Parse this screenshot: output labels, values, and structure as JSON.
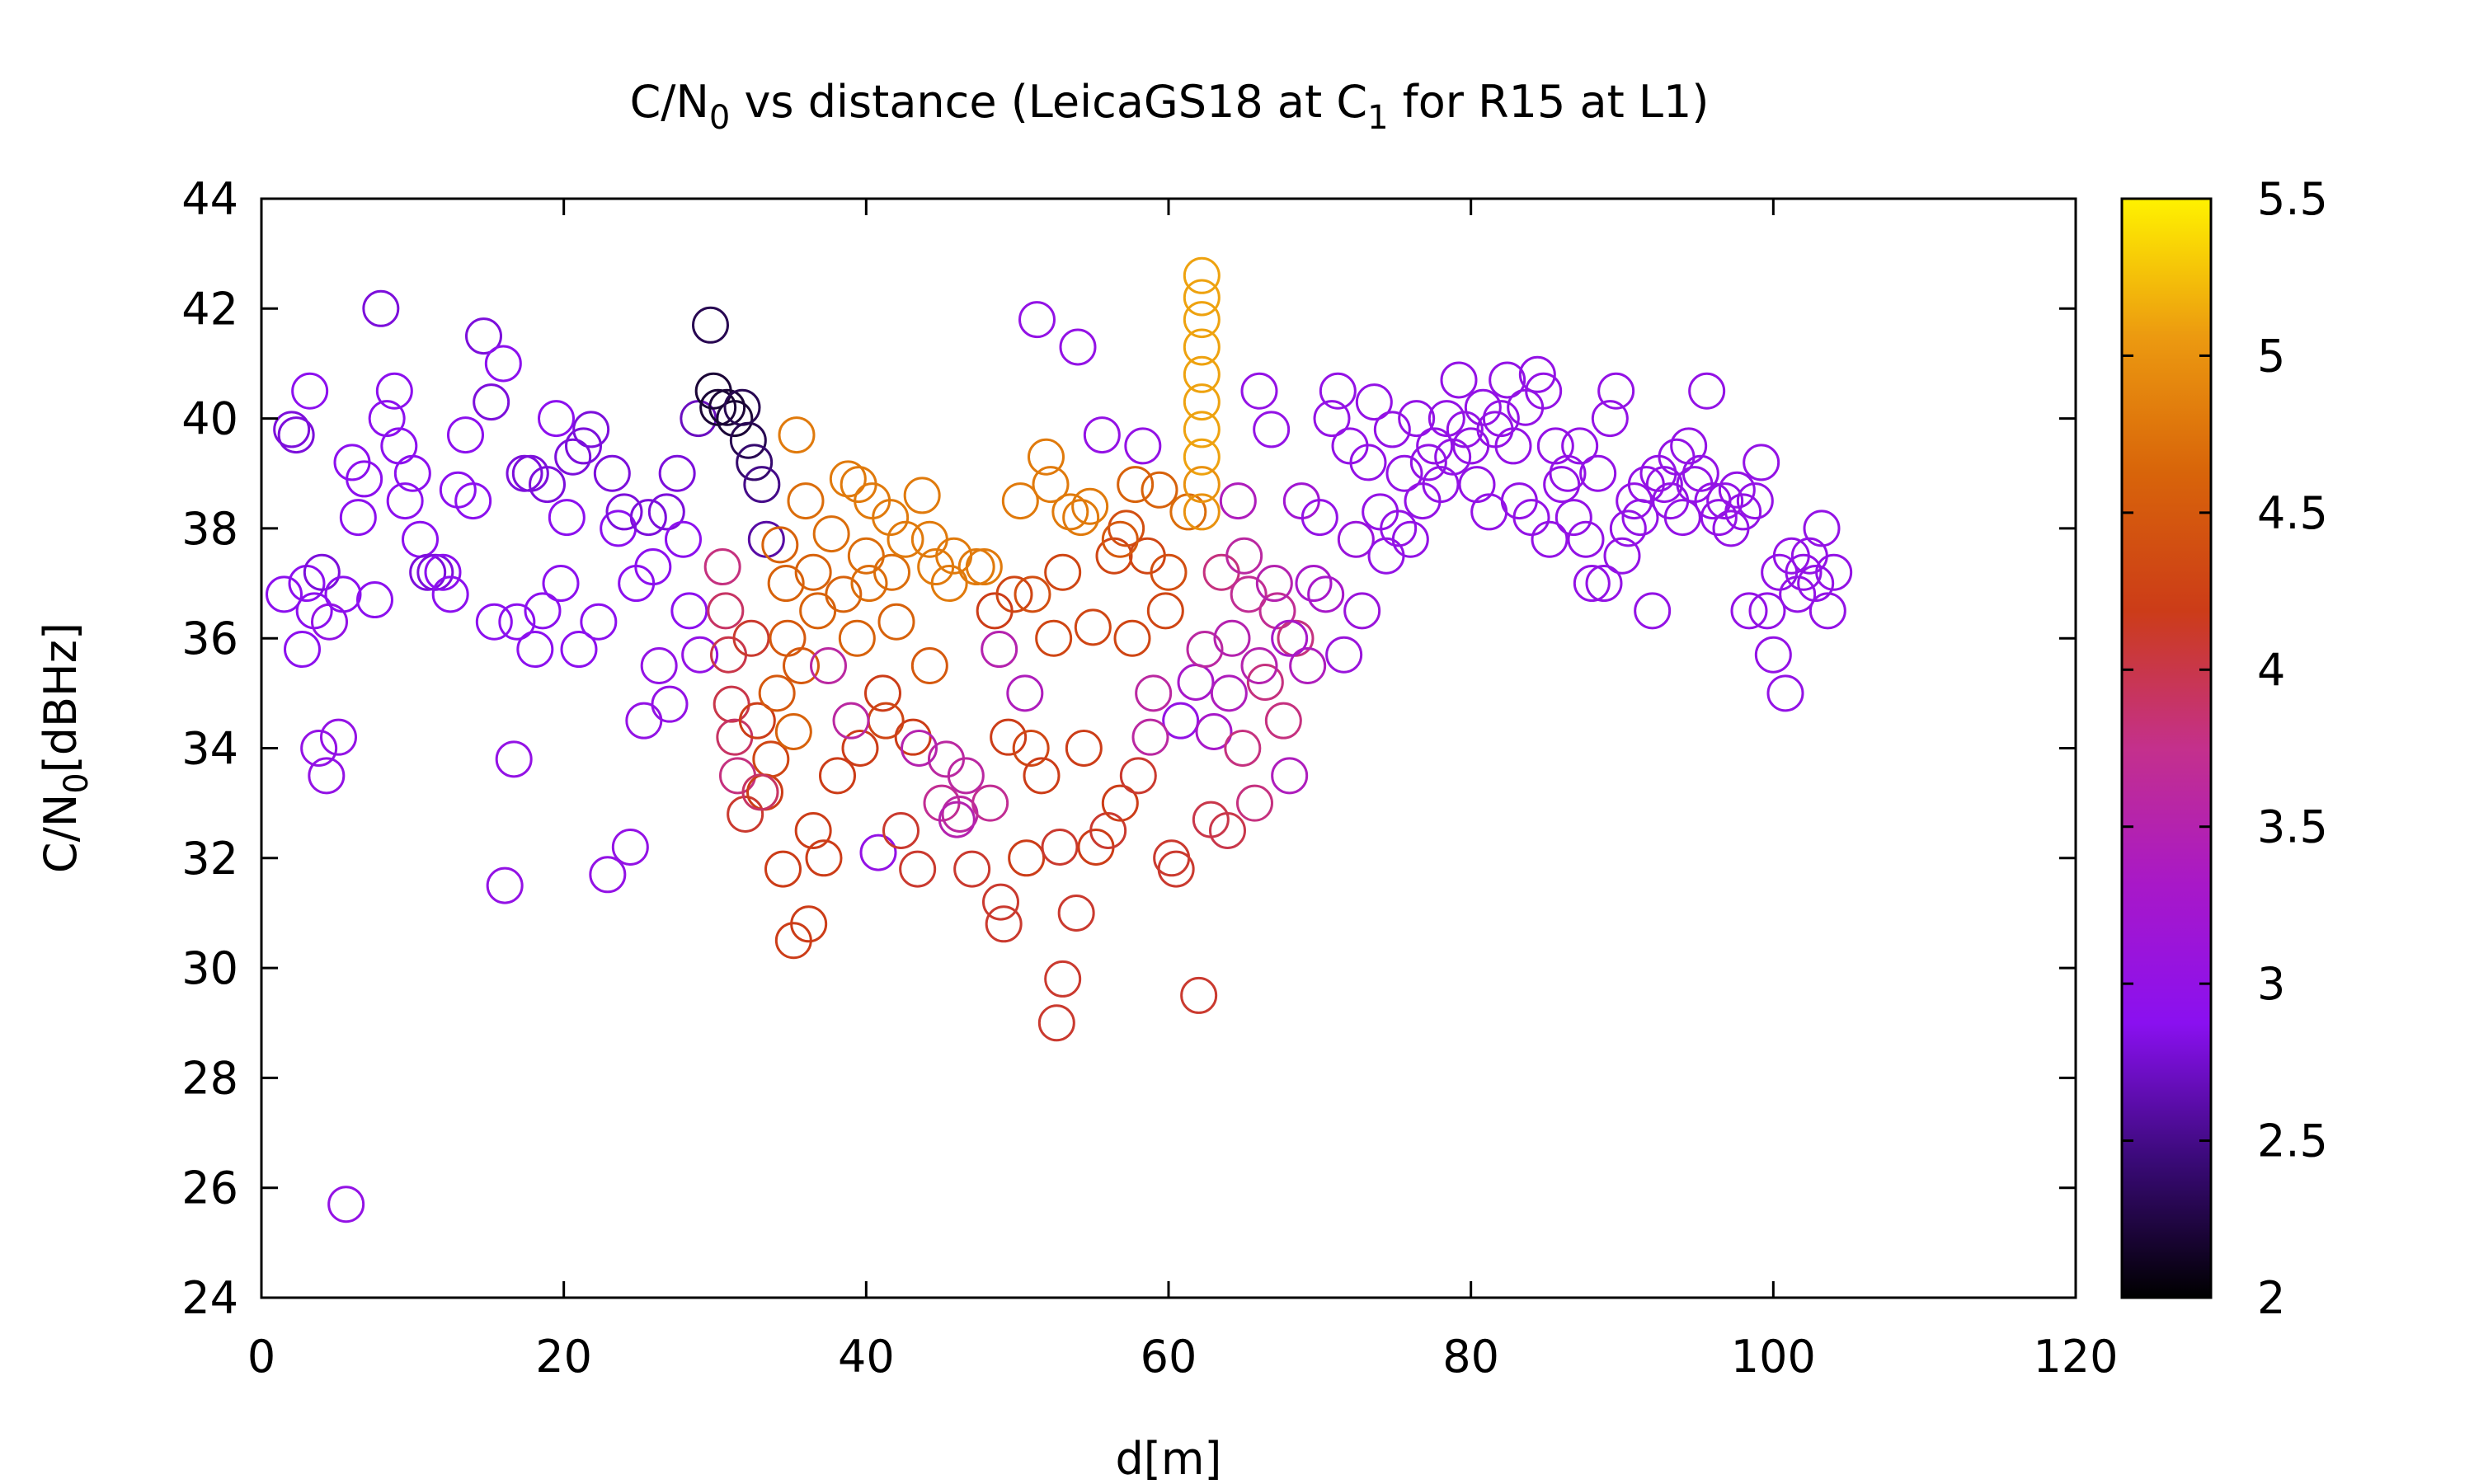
{
  "chart_data": {
    "type": "scatter",
    "title_prefix": "C/N",
    "title_sub": "0",
    "title_mid": " vs distance (LeicaGS18 at C",
    "title_sub2": "1",
    "title_suffix": " for R15 at L1)",
    "xlabel": "d[m]",
    "ylabel_prefix": "C/N",
    "ylabel_sub": "0",
    "ylabel_suffix": "[dBHz]",
    "xlim": [
      0,
      120
    ],
    "ylim": [
      24,
      44
    ],
    "xticks": [
      "0",
      "20",
      "40",
      "60",
      "80",
      "100",
      "120"
    ],
    "yticks": [
      "24",
      "26",
      "28",
      "30",
      "32",
      "34",
      "36",
      "38",
      "40",
      "42",
      "44"
    ],
    "colorbar": {
      "range": [
        2,
        5.5
      ],
      "ticks": [
        "2",
        "2.5",
        "3",
        "3.5",
        "4",
        "4.5",
        "5",
        "5.5"
      ],
      "stops": [
        "#000000",
        "#3a0a78",
        "#8a10f0",
        "#a818c8",
        "#c4308c",
        "#cc3c18",
        "#d8640a",
        "#ec9a10",
        "#fff200"
      ]
    },
    "marker": "open-circle",
    "points": [
      [
        1.5,
        36.8,
        2.9
      ],
      [
        2,
        39.8,
        2.8
      ],
      [
        2.3,
        39.7,
        2.8
      ],
      [
        3,
        37,
        2.9
      ],
      [
        3.2,
        40.5,
        2.9
      ],
      [
        2.7,
        35.8,
        2.9
      ],
      [
        3.5,
        36.5,
        2.9
      ],
      [
        4,
        37.2,
        2.8
      ],
      [
        4.5,
        36.3,
        3.0
      ],
      [
        3.8,
        34,
        3.0
      ],
      [
        4.3,
        33.5,
        3.0
      ],
      [
        5.1,
        34.2,
        3.0
      ],
      [
        5.6,
        25.7,
        3.0
      ],
      [
        5.4,
        36.8,
        2.9
      ],
      [
        6,
        39.2,
        2.9
      ],
      [
        6.4,
        38.2,
        2.9
      ],
      [
        6.8,
        38.9,
        2.9
      ],
      [
        7.5,
        36.7,
        2.9
      ],
      [
        7.9,
        42,
        2.8
      ],
      [
        8.3,
        40,
        2.9
      ],
      [
        8.8,
        40.5,
        2.9
      ],
      [
        9.1,
        39.5,
        2.9
      ],
      [
        9.5,
        38.5,
        2.9
      ],
      [
        10,
        39,
        2.9
      ],
      [
        10.5,
        37.8,
        2.9
      ],
      [
        11,
        37.2,
        2.8
      ],
      [
        11.5,
        37.2,
        2.8
      ],
      [
        12,
        37.2,
        2.9
      ],
      [
        12.5,
        36.8,
        2.9
      ],
      [
        13,
        38.7,
        2.9
      ],
      [
        13.5,
        39.7,
        2.9
      ],
      [
        14,
        38.5,
        2.9
      ],
      [
        14.7,
        41.5,
        2.8
      ],
      [
        15.2,
        40.3,
        2.8
      ],
      [
        15.4,
        36.3,
        2.9
      ],
      [
        16,
        41,
        2.9
      ],
      [
        16.1,
        31.5,
        3.0
      ],
      [
        16.7,
        33.8,
        3.0
      ],
      [
        16.9,
        36.3,
        2.9
      ],
      [
        17.4,
        39,
        2.8
      ],
      [
        17.8,
        39,
        2.8
      ],
      [
        18.1,
        35.8,
        2.9
      ],
      [
        18.6,
        36.5,
        2.9
      ],
      [
        18.9,
        38.8,
        2.8
      ],
      [
        19.5,
        40,
        2.9
      ],
      [
        19.8,
        37,
        2.9
      ],
      [
        20.2,
        38.2,
        2.9
      ],
      [
        20.6,
        39.3,
        2.8
      ],
      [
        21,
        35.8,
        2.9
      ],
      [
        21.3,
        39.5,
        2.8
      ],
      [
        21.8,
        39.8,
        2.8
      ],
      [
        22.3,
        36.3,
        2.9
      ],
      [
        22.9,
        31.7,
        3.0
      ],
      [
        23.2,
        39,
        2.8
      ],
      [
        23.6,
        38,
        2.9
      ],
      [
        24,
        38.3,
        2.8
      ],
      [
        24.4,
        32.2,
        3.0
      ],
      [
        24.8,
        37,
        2.9
      ],
      [
        25.3,
        34.5,
        3.0
      ],
      [
        25.6,
        38.2,
        2.8
      ],
      [
        25.9,
        37.3,
        2.9
      ],
      [
        26.3,
        35.5,
        3.0
      ],
      [
        26.8,
        38.3,
        2.8
      ],
      [
        27,
        34.8,
        3.0
      ],
      [
        27.5,
        39,
        2.8
      ],
      [
        27.9,
        37.8,
        2.9
      ],
      [
        28.3,
        36.5,
        2.9
      ],
      [
        28.9,
        40,
        2.7
      ],
      [
        29,
        35.7,
        3.0
      ],
      [
        29.7,
        41.7,
        2.3
      ],
      [
        29.9,
        40.5,
        2.2
      ],
      [
        30.2,
        40.2,
        2.2
      ],
      [
        30.8,
        40.2,
        2.2
      ],
      [
        31.3,
        40,
        2.2
      ],
      [
        31.8,
        40.2,
        2.3
      ],
      [
        32.2,
        39.6,
        2.3
      ],
      [
        32.6,
        39.2,
        2.4
      ],
      [
        33.1,
        38.8,
        2.5
      ],
      [
        33.4,
        37.8,
        2.6
      ],
      [
        30.5,
        37.3,
        3.8
      ],
      [
        30.7,
        36.5,
        3.9
      ],
      [
        30.9,
        35.7,
        4.0
      ],
      [
        31.1,
        34.8,
        4.0
      ],
      [
        31.3,
        34.2,
        3.9
      ],
      [
        31.5,
        33.5,
        3.8
      ],
      [
        32,
        32.8,
        4.1
      ],
      [
        32.4,
        36,
        4.1
      ],
      [
        32.8,
        34.5,
        4.2
      ],
      [
        33.3,
        33.2,
        4.2
      ],
      [
        33.7,
        33.8,
        4.3
      ],
      [
        34.1,
        35,
        4.5
      ],
      [
        34.3,
        37.7,
        4.6
      ],
      [
        34.5,
        31.8,
        4.2
      ],
      [
        34.7,
        37,
        4.6
      ],
      [
        35.2,
        34.3,
        4.6
      ],
      [
        35.2,
        30.5,
        4.2
      ],
      [
        35.4,
        39.7,
        4.8
      ],
      [
        35.7,
        35.5,
        4.5
      ],
      [
        36,
        38.5,
        4.7
      ],
      [
        36.2,
        30.8,
        4.2
      ],
      [
        36.5,
        32.5,
        4.2
      ],
      [
        36.8,
        36.5,
        4.6
      ],
      [
        37.2,
        32,
        4.2
      ],
      [
        37.7,
        37.9,
        4.7
      ],
      [
        38.1,
        33.5,
        4.2
      ],
      [
        38.5,
        36.8,
        4.6
      ],
      [
        38.8,
        38.9,
        4.8
      ],
      [
        39.4,
        36,
        4.6
      ],
      [
        39.6,
        34,
        4.2
      ],
      [
        40,
        37.5,
        4.7
      ],
      [
        40.4,
        38.5,
        4.8
      ],
      [
        40.8,
        32.1,
        3.0
      ],
      [
        41.1,
        35,
        4.2
      ],
      [
        41.3,
        34.5,
        4.3
      ],
      [
        41.7,
        37.2,
        4.7
      ],
      [
        42,
        36.3,
        4.6
      ],
      [
        42.3,
        32.5,
        4.1
      ],
      [
        42.6,
        37.8,
        4.8
      ],
      [
        43.1,
        34.2,
        4.2
      ],
      [
        43.4,
        31.8,
        4.1
      ],
      [
        43.7,
        38.6,
        4.8
      ],
      [
        44.2,
        35.5,
        4.5
      ],
      [
        44.6,
        37.3,
        4.8
      ],
      [
        45,
        33,
        3.7
      ],
      [
        45.3,
        33.8,
        3.6
      ],
      [
        45.8,
        37.5,
        4.8
      ],
      [
        46.2,
        32.8,
        3.6
      ],
      [
        46.6,
        33.5,
        3.6
      ],
      [
        47,
        31.8,
        4.1
      ],
      [
        47.3,
        37.3,
        4.8
      ],
      [
        47.8,
        37.3,
        4.8
      ],
      [
        48.2,
        33,
        3.7
      ],
      [
        48.5,
        36.5,
        4.2
      ],
      [
        48.9,
        31.2,
        4.1
      ],
      [
        49.1,
        30.8,
        4.1
      ],
      [
        49.4,
        34.2,
        4.2
      ],
      [
        49.8,
        36.8,
        4.3
      ],
      [
        50.2,
        38.5,
        4.8
      ],
      [
        50.6,
        32,
        4.2
      ],
      [
        50.9,
        34,
        4.3
      ],
      [
        51.3,
        41.8,
        3.0
      ],
      [
        51.6,
        33.5,
        4.2
      ],
      [
        51.9,
        39.3,
        4.8
      ],
      [
        52.4,
        36,
        4.3
      ],
      [
        52.8,
        32.2,
        4.1
      ],
      [
        53,
        29.8,
        4.1
      ],
      [
        52.6,
        29,
        4.1
      ],
      [
        53.5,
        38.3,
        4.8
      ],
      [
        53.9,
        31,
        4.1
      ],
      [
        54,
        41.3,
        3.0
      ],
      [
        54.4,
        34,
        4.2
      ],
      [
        54.8,
        38.4,
        4.8
      ],
      [
        55.2,
        32.2,
        4.2
      ],
      [
        55.6,
        39.7,
        3.0
      ],
      [
        56,
        32.5,
        4.1
      ],
      [
        56.4,
        37.5,
        4.3
      ],
      [
        56.8,
        33,
        4.2
      ],
      [
        57.2,
        38,
        4.4
      ],
      [
        57.6,
        36,
        4.3
      ],
      [
        58,
        33.5,
        4.1
      ],
      [
        58.3,
        39.5,
        3.0
      ],
      [
        58.6,
        37.5,
        4.3
      ],
      [
        59,
        35,
        3.6
      ],
      [
        59.4,
        38.7,
        4.6
      ],
      [
        59.8,
        36.5,
        4.3
      ],
      [
        60.2,
        32,
        4.1
      ],
      [
        60.5,
        31.8,
        4.1
      ],
      [
        60.8,
        34.5,
        3.0
      ],
      [
        61.3,
        38.3,
        4.7
      ],
      [
        61.8,
        35.2,
        3.3
      ],
      [
        62,
        29.5,
        4.1
      ],
      [
        62.2,
        42.6,
        5.1
      ],
      [
        62.2,
        42.2,
        5.1
      ],
      [
        62.2,
        41.8,
        5.1
      ],
      [
        62.2,
        41.3,
        5.1
      ],
      [
        62.2,
        40.8,
        5.1
      ],
      [
        62.2,
        40.3,
        5.1
      ],
      [
        62.2,
        39.8,
        5.1
      ],
      [
        62.2,
        39.3,
        5.1
      ],
      [
        62.2,
        38.8,
        5.0
      ],
      [
        62.2,
        38.3,
        5.0
      ],
      [
        62.4,
        35.8,
        3.6
      ],
      [
        62.8,
        32.7,
        4.0
      ],
      [
        63,
        34.3,
        3.3
      ],
      [
        63.5,
        37.2,
        3.8
      ],
      [
        63.9,
        32.5,
        4.0
      ],
      [
        64.2,
        36,
        3.5
      ],
      [
        64.6,
        38.5,
        3.4
      ],
      [
        64.9,
        34,
        3.8
      ],
      [
        65.3,
        36.8,
        3.7
      ],
      [
        65.7,
        33,
        3.8
      ],
      [
        66,
        40.5,
        3.0
      ],
      [
        66.4,
        35.2,
        3.8
      ],
      [
        66.8,
        39.8,
        3.0
      ],
      [
        67.2,
        36.5,
        3.7
      ],
      [
        67.6,
        34.5,
        3.8
      ],
      [
        68,
        33.5,
        3.4
      ],
      [
        68.4,
        36,
        3.8
      ],
      [
        68.8,
        38.5,
        3.2
      ],
      [
        69.2,
        35.5,
        3.4
      ],
      [
        69.6,
        37,
        3.3
      ],
      [
        70,
        38.2,
        3.0
      ],
      [
        70.4,
        36.8,
        3.3
      ],
      [
        70.8,
        40,
        3.0
      ],
      [
        71.2,
        40.5,
        3.0
      ],
      [
        71.6,
        35.7,
        3.1
      ],
      [
        72,
        39.5,
        3.0
      ],
      [
        72.4,
        37.8,
        3.1
      ],
      [
        72.8,
        36.5,
        3.1
      ],
      [
        73.2,
        39.2,
        3.0
      ],
      [
        73.6,
        40.3,
        3.0
      ],
      [
        74,
        38.3,
        3.0
      ],
      [
        74.4,
        37.5,
        3.0
      ],
      [
        74.8,
        39.8,
        3.0
      ],
      [
        75.2,
        38,
        3.0
      ],
      [
        75.6,
        39,
        3.0
      ],
      [
        76,
        37.8,
        3.0
      ],
      [
        76.4,
        40,
        3.0
      ],
      [
        76.8,
        38.5,
        3.0
      ],
      [
        77.2,
        39.2,
        3.0
      ],
      [
        77.6,
        39.5,
        3.0
      ],
      [
        78,
        38.8,
        3.0
      ],
      [
        78.4,
        40,
        3.0
      ],
      [
        78.8,
        39.3,
        3.0
      ],
      [
        79.2,
        40.7,
        3.0
      ],
      [
        79.6,
        39.8,
        3.0
      ],
      [
        80,
        39.5,
        3.0
      ],
      [
        80.4,
        38.8,
        3.0
      ],
      [
        80.8,
        40.2,
        3.0
      ],
      [
        81.2,
        38.3,
        3.0
      ],
      [
        81.6,
        39.8,
        3.0
      ],
      [
        82,
        40,
        3.0
      ],
      [
        82.4,
        40.7,
        3.0
      ],
      [
        82.8,
        39.5,
        3.0
      ],
      [
        83.2,
        38.5,
        3.0
      ],
      [
        83.6,
        40.2,
        3.0
      ],
      [
        84,
        38.2,
        3.0
      ],
      [
        84.4,
        40.8,
        3.0
      ],
      [
        84.8,
        40.5,
        3.0
      ],
      [
        85.2,
        37.8,
        3.0
      ],
      [
        85.6,
        39.5,
        3.0
      ],
      [
        86,
        38.8,
        3.0
      ],
      [
        86.4,
        39,
        3.0
      ],
      [
        86.8,
        38.2,
        3.0
      ],
      [
        87.2,
        39.5,
        3.0
      ],
      [
        87.6,
        37.8,
        3.0
      ],
      [
        88,
        37,
        3.0
      ],
      [
        88.4,
        39,
        3.0
      ],
      [
        88.8,
        37,
        3.0
      ],
      [
        89.2,
        40,
        3.0
      ],
      [
        89.6,
        40.5,
        3.0
      ],
      [
        90,
        37.5,
        3.0
      ],
      [
        90.4,
        38,
        3.0
      ],
      [
        90.8,
        38.5,
        3.0
      ],
      [
        91.2,
        38.2,
        3.0
      ],
      [
        91.6,
        38.8,
        3.0
      ],
      [
        92,
        36.5,
        3.0
      ],
      [
        92.4,
        39,
        3.0
      ],
      [
        92.8,
        38.8,
        3.0
      ],
      [
        93.2,
        38.5,
        3.0
      ],
      [
        93.6,
        39.3,
        3.0
      ],
      [
        94,
        38.2,
        3.0
      ],
      [
        94.4,
        39.5,
        3.0
      ],
      [
        94.8,
        38.8,
        3.0
      ],
      [
        95.2,
        39,
        3.0
      ],
      [
        95.6,
        40.5,
        3.0
      ],
      [
        96,
        38.5,
        3.0
      ],
      [
        96.4,
        38.2,
        3.0
      ],
      [
        96.8,
        38.5,
        3.0
      ],
      [
        97.2,
        38,
        3.0
      ],
      [
        97.6,
        38.7,
        3.0
      ],
      [
        98,
        38.3,
        3.0
      ],
      [
        98.4,
        36.5,
        3.0
      ],
      [
        98.8,
        38.5,
        3.0
      ],
      [
        99.2,
        39.2,
        3.0
      ],
      [
        99.6,
        36.5,
        3.0
      ],
      [
        100,
        35.7,
        3.0
      ],
      [
        100.4,
        37.2,
        3.0
      ],
      [
        100.8,
        35,
        3.0
      ],
      [
        101.2,
        37.5,
        3.0
      ],
      [
        101.6,
        36.8,
        3.0
      ],
      [
        102,
        37.2,
        3.0
      ],
      [
        102.4,
        37.5,
        3.0
      ],
      [
        102.8,
        37,
        3.0
      ],
      [
        103.2,
        38,
        3.0
      ],
      [
        103.6,
        36.5,
        3.0
      ],
      [
        104,
        37.2,
        3.0
      ],
      [
        33,
        33.2,
        3.9
      ],
      [
        37.5,
        35.5,
        3.6
      ],
      [
        39,
        34.5,
        3.6
      ],
      [
        43.5,
        34,
        3.5
      ],
      [
        46,
        32.7,
        3.5
      ],
      [
        50.5,
        35,
        3.4
      ],
      [
        58.8,
        34.2,
        3.6
      ],
      [
        64,
        35,
        3.4
      ],
      [
        66,
        35.5,
        3.5
      ],
      [
        68,
        36,
        3.3
      ],
      [
        56.8,
        37.8,
        4.5
      ],
      [
        57.8,
        38.8,
        4.6
      ],
      [
        34.8,
        36,
        4.5
      ],
      [
        36.5,
        37.2,
        4.6
      ],
      [
        40.2,
        37,
        4.7
      ],
      [
        41.6,
        38.2,
        4.8
      ],
      [
        45.5,
        37,
        4.8
      ],
      [
        48.8,
        35.8,
        3.5
      ],
      [
        51,
        36.8,
        4.4
      ],
      [
        53,
        37.2,
        4.3
      ],
      [
        55,
        36.2,
        4.3
      ],
      [
        60,
        37.2,
        4.4
      ],
      [
        65,
        37.5,
        3.6
      ],
      [
        67,
        37,
        3.5
      ],
      [
        39.5,
        38.8,
        4.8
      ],
      [
        44.2,
        37.8,
        4.8
      ],
      [
        52.2,
        38.8,
        4.8
      ],
      [
        54.2,
        38.2,
        4.8
      ]
    ]
  }
}
